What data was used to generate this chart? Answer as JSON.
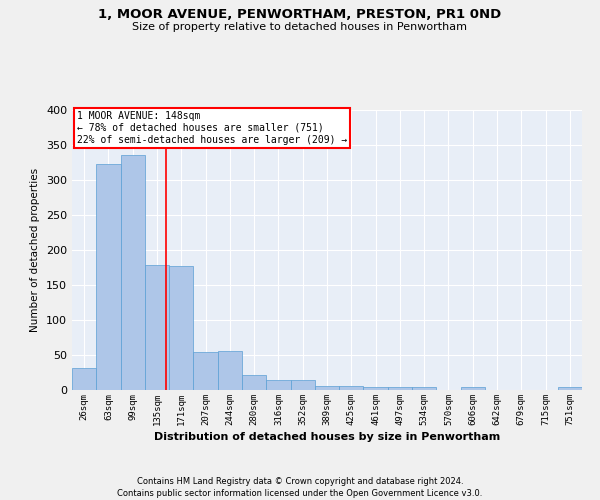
{
  "title1": "1, MOOR AVENUE, PENWORTHAM, PRESTON, PR1 0ND",
  "title2": "Size of property relative to detached houses in Penwortham",
  "xlabel": "Distribution of detached houses by size in Penwortham",
  "ylabel": "Number of detached properties",
  "categories": [
    "26sqm",
    "63sqm",
    "99sqm",
    "135sqm",
    "171sqm",
    "207sqm",
    "244sqm",
    "280sqm",
    "316sqm",
    "352sqm",
    "389sqm",
    "425sqm",
    "461sqm",
    "497sqm",
    "534sqm",
    "570sqm",
    "606sqm",
    "642sqm",
    "679sqm",
    "715sqm",
    "751sqm"
  ],
  "values": [
    32,
    323,
    335,
    178,
    177,
    55,
    56,
    22,
    14,
    14,
    6,
    6,
    5,
    5,
    4,
    0,
    4,
    0,
    0,
    0,
    4
  ],
  "bar_color": "#aec6e8",
  "bar_edge_color": "#5a9fd4",
  "background_color": "#e8eef7",
  "grid_color": "#ffffff",
  "annotation_text": "1 MOOR AVENUE: 148sqm\n← 78% of detached houses are smaller (751)\n22% of semi-detached houses are larger (209) →",
  "footer1": "Contains HM Land Registry data © Crown copyright and database right 2024.",
  "footer2": "Contains public sector information licensed under the Open Government Licence v3.0.",
  "ylim": [
    0,
    400
  ],
  "yticks": [
    0,
    50,
    100,
    150,
    200,
    250,
    300,
    350,
    400
  ],
  "fig_bg": "#f0f0f0"
}
